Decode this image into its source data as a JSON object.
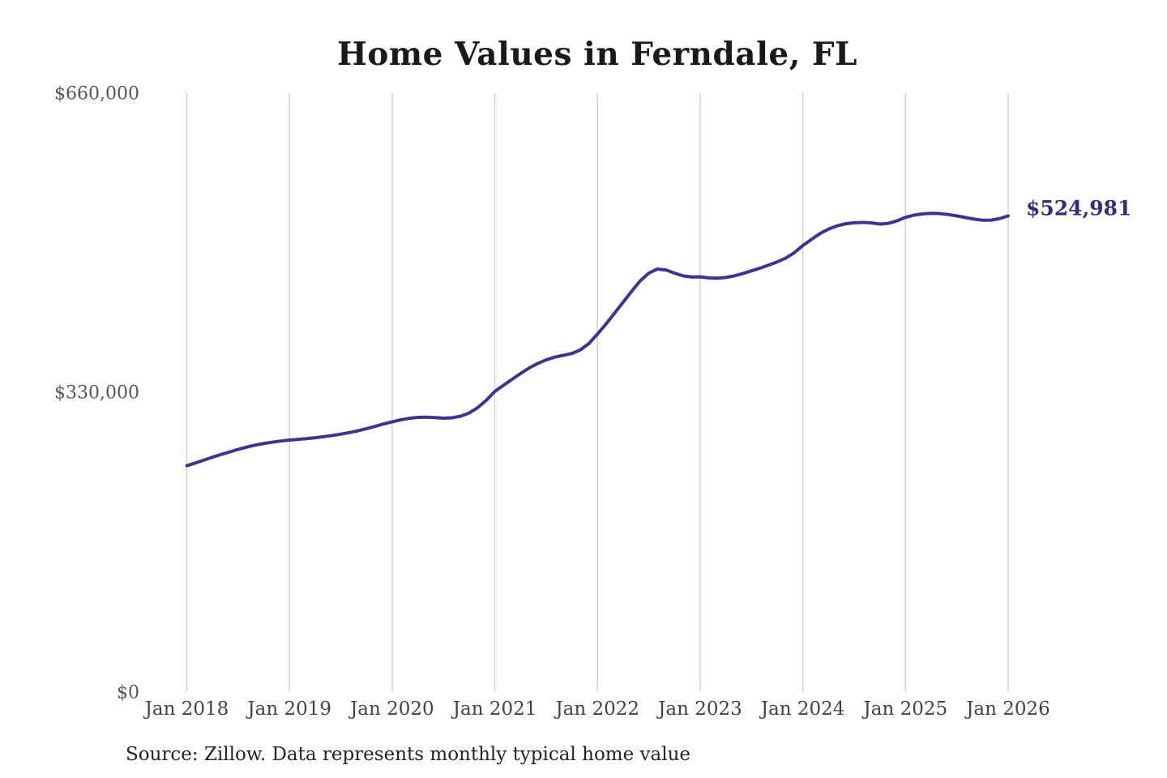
{
  "page": {
    "background": "#ffffff"
  },
  "header": {
    "title": "Home Values in Ferndale, FL"
  },
  "footer": {
    "source_note": "Source: Zillow. Data represents monthly typical home value"
  },
  "end_label": {
    "text": "$524,981"
  },
  "colors": {
    "line": "#3b3590",
    "end_label_text": "#312e7f",
    "grid": "#cccccc",
    "title_text": "#1a1a1a",
    "y_tick_text": "#55565a",
    "x_tick_text": "#434347",
    "source_text": "#232323",
    "background": "#ffffff"
  },
  "chart_data": {
    "type": "line",
    "title": "Home Values in Ferndale, FL",
    "xlabel": "",
    "ylabel": "",
    "ylim": [
      0,
      660000
    ],
    "y_ticks": [
      0,
      330000,
      660000
    ],
    "y_tick_labels": [
      "$0",
      "$330,000",
      "$660,000"
    ],
    "x_tick_labels": [
      "Jan 2018",
      "Jan 2019",
      "Jan 2020",
      "Jan 2021",
      "Jan 2022",
      "Jan 2023",
      "Jan 2024",
      "Jan 2025",
      "Jan 2026"
    ],
    "x_interval": "monthly",
    "x_range": [
      "Jan 2018",
      "Jan 2026"
    ],
    "grid": "vertical-only",
    "legend": "none",
    "final_value": 524981,
    "annotations": [
      {
        "text": "$524,981",
        "x": "Jan 2026",
        "y": 524981
      }
    ],
    "series": [
      {
        "name": "Monthly typical home value",
        "values": [
          250000,
          253000,
          256200,
          259400,
          262400,
          265200,
          268000,
          270500,
          272700,
          274500,
          276000,
          277200,
          278300,
          279000,
          279800,
          280800,
          282000,
          283300,
          284800,
          286500,
          288500,
          290800,
          293300,
          296000,
          298300,
          300500,
          302200,
          303200,
          303500,
          303000,
          302400,
          302800,
          304500,
          308000,
          314000,
          322000,
          331800,
          338500,
          345000,
          351500,
          357500,
          362500,
          366500,
          369500,
          371500,
          373500,
          377500,
          384500,
          395000,
          406000,
          418000,
          430000,
          442000,
          453500,
          462000,
          466500,
          465500,
          462000,
          459000,
          457800,
          457900,
          456800,
          456400,
          457200,
          459000,
          461500,
          464500,
          467500,
          470800,
          474300,
          478500,
          484500,
          492300,
          499000,
          505500,
          510500,
          514000,
          516300,
          517400,
          517800,
          517300,
          516000,
          516800,
          519500,
          523400,
          525800,
          527200,
          527800,
          527500,
          526500,
          525000,
          523200,
          521400,
          520200,
          520300,
          522000,
          524981
        ]
      }
    ]
  }
}
